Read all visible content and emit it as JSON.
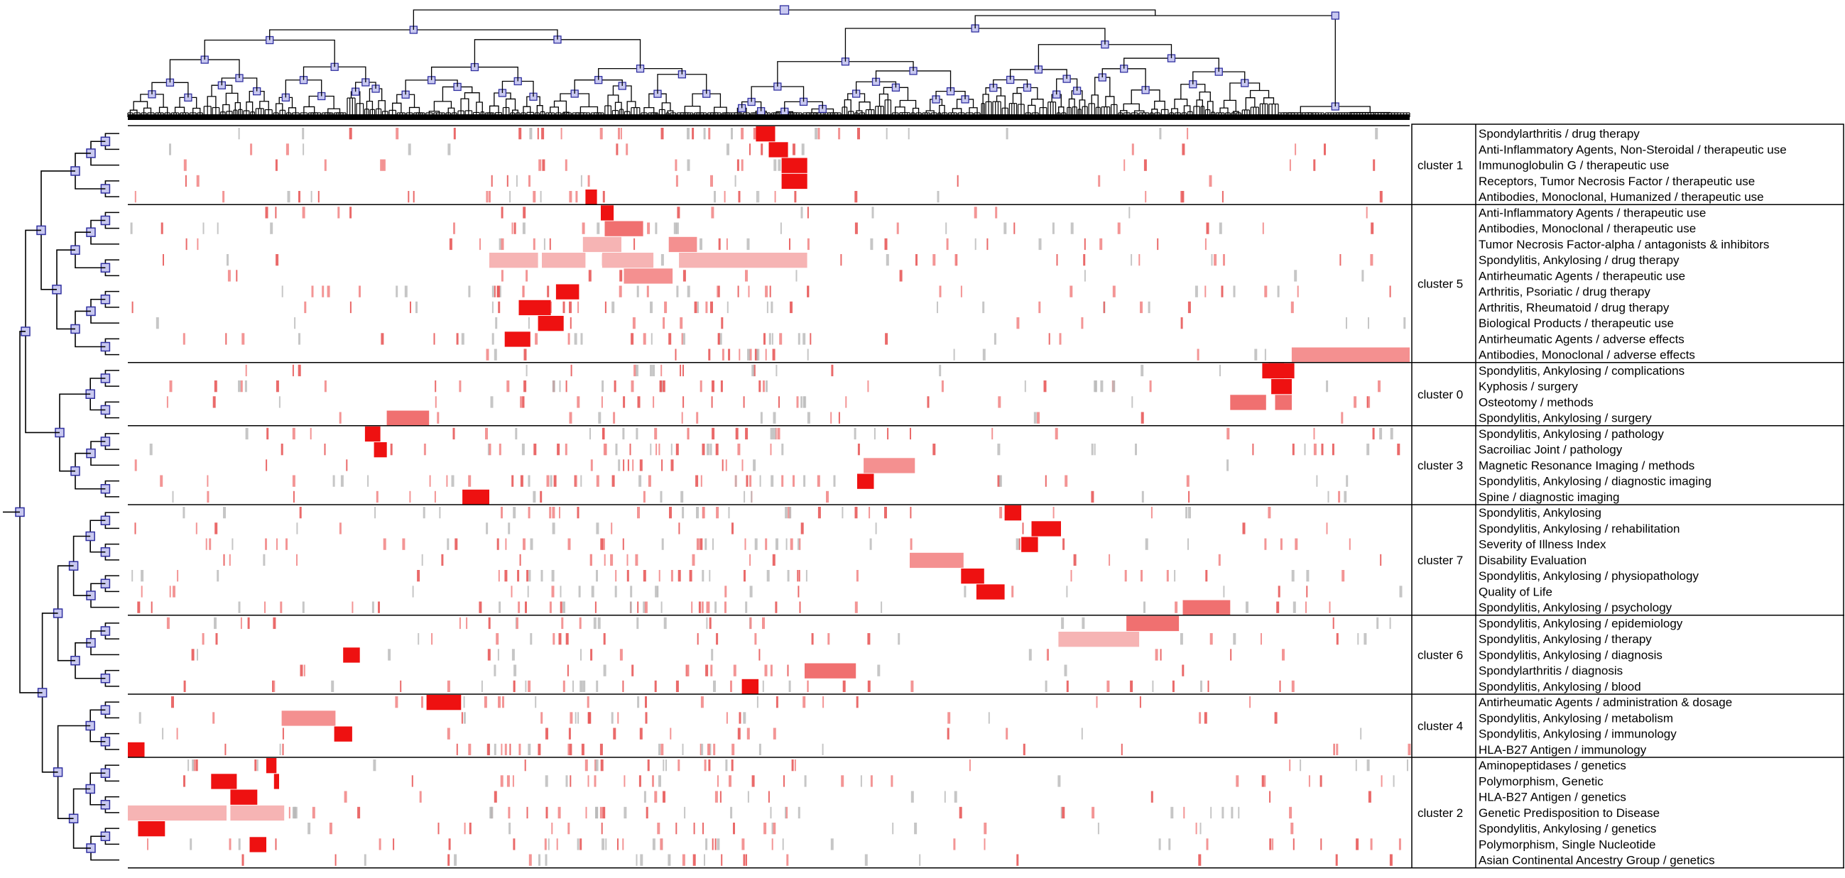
{
  "chart_data": {
    "type": "heatmap",
    "row_dendrogram": "hierarchical clustering of MeSH terms (left)",
    "column_dendrogram": "hierarchical clustering of documents (top)",
    "clusters": [
      {
        "label": "cluster 1",
        "terms": [
          "Spondylarthritis / drug therapy",
          "Anti-Inflammatory Agents, Non-Steroidal / therapeutic use",
          "Immunoglobulin G / therapeutic use",
          "Receptors, Tumor Necrosis Factor / therapeutic use",
          "Antibodies, Monoclonal, Humanized / therapeutic use"
        ]
      },
      {
        "label": "cluster 5",
        "terms": [
          "Anti-Inflammatory Agents / therapeutic use",
          "Antibodies, Monoclonal / therapeutic use",
          "Tumor Necrosis Factor-alpha / antagonists & inhibitors",
          "Spondylitis, Ankylosing / drug therapy",
          "Antirheumatic Agents / therapeutic use",
          "Arthritis, Psoriatic / drug therapy",
          "Arthritis, Rheumatoid / drug therapy",
          "Biological Products / therapeutic use",
          "Antirheumatic Agents / adverse effects",
          "Antibodies, Monoclonal / adverse effects"
        ]
      },
      {
        "label": "cluster 0",
        "terms": [
          "Spondylitis, Ankylosing / complications",
          "Kyphosis / surgery",
          "Osteotomy / methods",
          "Spondylitis, Ankylosing / surgery"
        ]
      },
      {
        "label": "cluster 3",
        "terms": [
          "Spondylitis, Ankylosing / pathology",
          "Sacroiliac Joint / pathology",
          "Magnetic Resonance Imaging / methods",
          "Spondylitis, Ankylosing / diagnostic imaging",
          "Spine / diagnostic imaging"
        ]
      },
      {
        "label": "cluster 7",
        "terms": [
          "Spondylitis, Ankylosing",
          "Spondylitis, Ankylosing / rehabilitation",
          "Severity of Illness Index",
          "Disability Evaluation",
          "Spondylitis, Ankylosing / physiopathology",
          "Quality of Life",
          "Spondylitis, Ankylosing / psychology"
        ]
      },
      {
        "label": "cluster 6",
        "terms": [
          "Spondylitis, Ankylosing / epidemiology",
          "Spondylitis, Ankylosing / therapy",
          "Spondylitis, Ankylosing / diagnosis",
          "Spondylarthritis / diagnosis",
          "Spondylitis, Ankylosing / blood"
        ]
      },
      {
        "label": "cluster 4",
        "terms": [
          "Antirheumatic Agents / administration & dosage",
          "Spondylitis, Ankylosing / metabolism",
          "Spondylitis, Ankylosing / immunology",
          "HLA-B27 Antigen / immunology"
        ]
      },
      {
        "label": "cluster 2",
        "terms": [
          "Aminopeptidases / genetics",
          "Polymorphism, Genetic",
          "HLA-B27 Antigen / genetics",
          "Genetic Predisposition to Disease",
          "Spondylitis, Ankylosing / genetics",
          "Polymorphism, Single Nucleotide",
          "Asian Continental Ancestry Group / genetics"
        ]
      }
    ],
    "blocks": [
      [
        1,
        0.49,
        0.505,
        1.0
      ],
      [
        2,
        0.5,
        0.515,
        1.0
      ],
      [
        3,
        0.51,
        0.53,
        0.85
      ],
      [
        4,
        0.51,
        0.53,
        0.85
      ],
      [
        5,
        0.357,
        0.366,
        1.0
      ],
      [
        6,
        0.369,
        0.379,
        1.0
      ],
      [
        7,
        0.372,
        0.402,
        0.7
      ],
      [
        8,
        0.355,
        0.385,
        0.35
      ],
      [
        8,
        0.422,
        0.444,
        0.45
      ],
      [
        9,
        0.282,
        0.32,
        0.3
      ],
      [
        9,
        0.323,
        0.357,
        0.35
      ],
      [
        9,
        0.37,
        0.41,
        0.3
      ],
      [
        9,
        0.43,
        0.53,
        0.2
      ],
      [
        10,
        0.387,
        0.425,
        0.55
      ],
      [
        11,
        0.334,
        0.352,
        0.9
      ],
      [
        12,
        0.305,
        0.33,
        0.85
      ],
      [
        13,
        0.32,
        0.34,
        0.85
      ],
      [
        14,
        0.294,
        0.314,
        1.0
      ],
      [
        15,
        0.908,
        1.0,
        0.4
      ],
      [
        16,
        0.885,
        0.902,
        1.0
      ],
      [
        16,
        0.89,
        0.91,
        1.0
      ],
      [
        17,
        0.892,
        0.908,
        1.0
      ],
      [
        18,
        0.86,
        0.888,
        0.7
      ],
      [
        18,
        0.895,
        0.908,
        0.7
      ],
      [
        19,
        0.202,
        0.235,
        0.6
      ],
      [
        20,
        0.185,
        0.197,
        1.0
      ],
      [
        21,
        0.192,
        0.202,
        1.0
      ],
      [
        22,
        0.574,
        0.614,
        0.55
      ],
      [
        23,
        0.569,
        0.582,
        1.0
      ],
      [
        24,
        0.261,
        0.282,
        0.95
      ],
      [
        25,
        0.684,
        0.697,
        1.0
      ],
      [
        26,
        0.705,
        0.728,
        0.9
      ],
      [
        27,
        0.697,
        0.71,
        1.0
      ],
      [
        28,
        0.61,
        0.652,
        0.55
      ],
      [
        29,
        0.65,
        0.668,
        0.9
      ],
      [
        30,
        0.662,
        0.684,
        1.0
      ],
      [
        31,
        0.823,
        0.86,
        0.65
      ],
      [
        32,
        0.779,
        0.82,
        0.75
      ],
      [
        33,
        0.726,
        0.789,
        0.35
      ],
      [
        34,
        0.168,
        0.181,
        1.0
      ],
      [
        35,
        0.528,
        0.568,
        0.6
      ],
      [
        36,
        0.479,
        0.492,
        1.0
      ],
      [
        37,
        0.233,
        0.26,
        0.8
      ],
      [
        38,
        0.12,
        0.162,
        0.5
      ],
      [
        39,
        0.161,
        0.175,
        1.0
      ],
      [
        40,
        0.0,
        0.013,
        1.0
      ],
      [
        41,
        0.108,
        0.116,
        1.0
      ],
      [
        42,
        0.065,
        0.085,
        0.8
      ],
      [
        42,
        0.114,
        0.118,
        1.0
      ],
      [
        43,
        0.08,
        0.101,
        0.85
      ],
      [
        44,
        0.0,
        0.077,
        0.25
      ],
      [
        44,
        0.08,
        0.122,
        0.35
      ],
      [
        45,
        0.008,
        0.029,
        0.8
      ],
      [
        46,
        0.095,
        0.108,
        1.0
      ]
    ]
  },
  "colors": {
    "strong": "#ee1111",
    "light": "#f6b4b4",
    "grey": "#b8b8b8",
    "node_fill": "#c8c8f0",
    "node_stroke": "#3030a0",
    "line": "#000000"
  }
}
